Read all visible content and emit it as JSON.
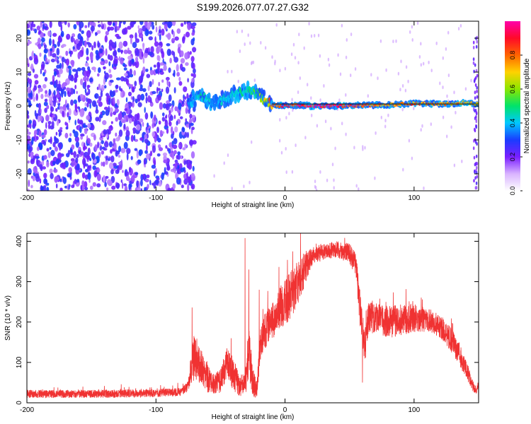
{
  "figure_title": "S199.2026.077.07.27.G32",
  "chart_data": [
    {
      "type": "heatmap",
      "title": "S199.2026.077.07.27.G32",
      "xlabel": "Height of straight line (km)",
      "ylabel": "Frequency (Hz)",
      "xlim": [
        -200,
        150
      ],
      "ylim": [
        -25,
        25
      ],
      "xticks": [
        -200,
        -100,
        0,
        100
      ],
      "yticks": [
        -20,
        -10,
        0,
        10,
        20
      ],
      "colorbar": {
        "label": "Normalized spectral amplitude",
        "range": [
          0.0,
          1.0
        ],
        "ticks": [
          "0.0",
          "0.2",
          "0.4",
          "0.6",
          "0.8"
        ],
        "colormap": [
          "#ffffff",
          "#d9b3ff",
          "#7a1fff",
          "#1a3cff",
          "#00c8ff",
          "#00e36a",
          "#8ce600",
          "#ffd200",
          "#ff6400",
          "#ff0a28",
          "#ff00aa"
        ]
      },
      "noise_region_x": [
        -200,
        -70
      ],
      "quiet_gap_x": [
        -70,
        -55
      ],
      "signal_trace": {
        "x": [
          -75,
          -65,
          -55,
          -45,
          -35,
          -25,
          -15,
          -10,
          0,
          10,
          20,
          40,
          60,
          80,
          100,
          120,
          140,
          150
        ],
        "freq": [
          1.5,
          3,
          0.5,
          2.5,
          4,
          5,
          1.5,
          0.2,
          0,
          0.3,
          0,
          0,
          0.2,
          0.3,
          0.8,
          0.6,
          0.9,
          0.5
        ],
        "amplitude": [
          0.3,
          0.5,
          0.4,
          0.45,
          0.5,
          0.5,
          0.7,
          0.85,
          0.9,
          0.95,
          0.98,
          0.98,
          0.9,
          0.8,
          0.85,
          0.8,
          0.8,
          0.7
        ]
      }
    },
    {
      "type": "line",
      "xlabel": "Height of straight line (km)",
      "ylabel": "SNR (10 * v/v)",
      "xlim": [
        -200,
        150
      ],
      "ylim": [
        0,
        420
      ],
      "xticks": [
        -200,
        -100,
        0,
        100
      ],
      "yticks": [
        0,
        100,
        200,
        300,
        400
      ],
      "series": [
        {
          "name": "SNR",
          "color": "#f03232",
          "envelope": {
            "x": [
              -200,
              -150,
              -100,
              -80,
              -75,
              -72,
              -70,
              -65,
              -60,
              -55,
              -50,
              -45,
              -40,
              -35,
              -30,
              -28,
              -25,
              -22,
              -20,
              -18,
              -15,
              -10,
              -5,
              0,
              5,
              10,
              15,
              20,
              30,
              40,
              50,
              55,
              58,
              60,
              62,
              65,
              70,
              80,
              90,
              100,
              110,
              120,
              130,
              140,
              145,
              148,
              150
            ],
            "base": [
              22,
              22,
              24,
              27,
              40,
              90,
              120,
              85,
              60,
              45,
              55,
              100,
              70,
              40,
              60,
              130,
              50,
              30,
              100,
              170,
              180,
              200,
              230,
              250,
              270,
              300,
              330,
              360,
              375,
              380,
              370,
              340,
              230,
              180,
              140,
              220,
              210,
              200,
              205,
              210,
              205,
              190,
              150,
              90,
              45,
              30,
              45
            ],
            "spread": [
              10,
              10,
              10,
              10,
              15,
              45,
              60,
              40,
              35,
              25,
              30,
              40,
              40,
              25,
              35,
              60,
              40,
              25,
              40,
              50,
              45,
              45,
              50,
              60,
              60,
              55,
              45,
              25,
              20,
              20,
              25,
              30,
              45,
              45,
              45,
              45,
              40,
              40,
              40,
              35,
              30,
              30,
              30,
              25,
              15,
              10,
              10
            ]
          },
          "spikes": [
            {
              "x": -72,
              "y": 236
            },
            {
              "x": -31,
              "y": 408
            },
            {
              "x": -28,
              "y": 330
            },
            {
              "x": -20,
              "y": 280
            },
            {
              "x": 12,
              "y": 420
            },
            {
              "x": 6,
              "y": 375
            },
            {
              "x": 60,
              "y": 50
            },
            {
              "x": 150,
              "y": 8
            }
          ]
        }
      ]
    }
  ]
}
